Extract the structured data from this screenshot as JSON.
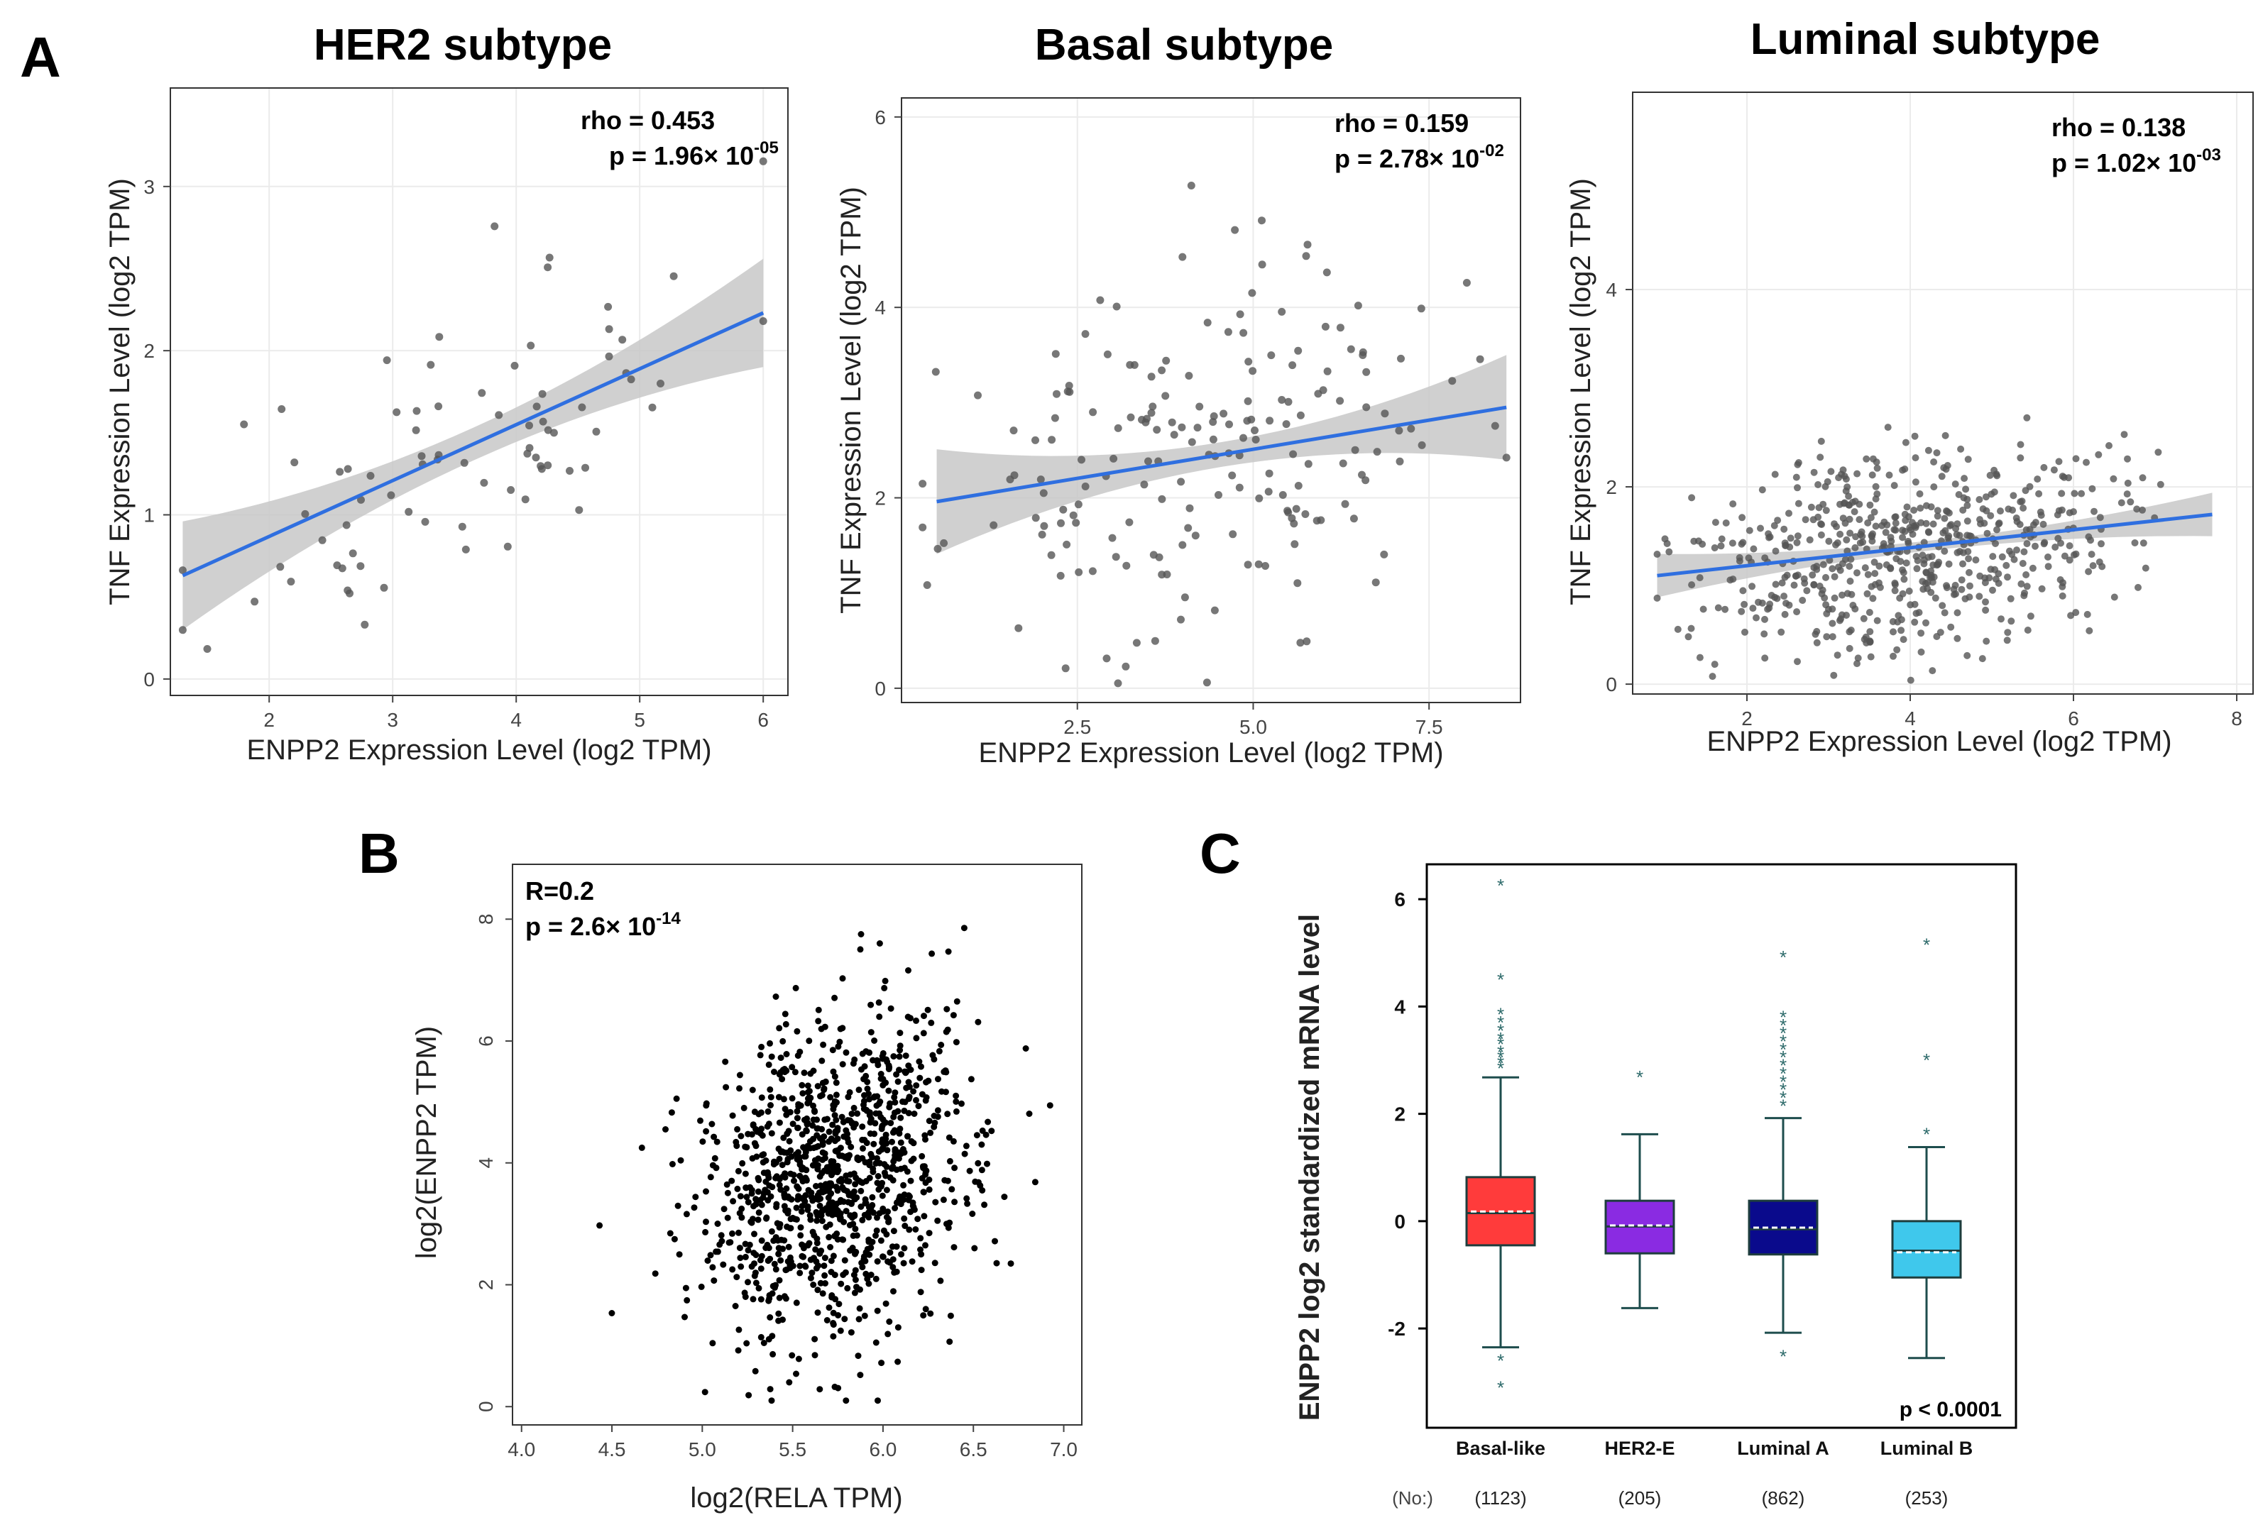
{
  "panel_labels": {
    "a": "A",
    "b": "B",
    "c": "C"
  },
  "colors": {
    "regression_line": "#2f6fe0",
    "ci_band": "#c8c8c8",
    "point_gray": "#555555",
    "point_black": "#000000",
    "box_basal": "#ff3b3b",
    "box_her2": "#8a2be2",
    "box_luma": "#0a0a8c",
    "box_lumb": "#3fc8ec",
    "outlier": "#2e6b6b"
  },
  "chart_data": [
    {
      "id": "her2",
      "type": "scatter",
      "title": "HER2 subtype",
      "xlabel": "ENPP2 Expression Level (log2 TPM)",
      "ylabel": "TNF Expression Level (log2 TPM)",
      "xlim": [
        1.2,
        6.2
      ],
      "ylim": [
        -0.1,
        3.6
      ],
      "xticks": [
        2,
        3,
        4,
        5,
        6
      ],
      "yticks": [
        0,
        1,
        2,
        3
      ],
      "grid": true,
      "stats": {
        "rho": "rho = 0.453",
        "p_prefix": "p = 1.96× 10",
        "p_exp": "-05"
      },
      "fit": {
        "x": [
          1.3,
          6.0
        ],
        "y": [
          0.63,
          2.23
        ],
        "ci_halfwidth_ends": 0.33,
        "ci_halfwidth_mid": 0.1
      },
      "n_points": 80,
      "seed": 11
    },
    {
      "id": "basal",
      "type": "scatter",
      "title": "Basal subtype",
      "xlabel": "ENPP2 Expression Level (log2 TPM)",
      "ylabel": "TNF Expression Level (log2 TPM)",
      "xlim": [
        0,
        8.8
      ],
      "ylim": [
        -0.15,
        6.2
      ],
      "xticks": [
        2.5,
        5.0,
        7.5
      ],
      "xtick_labels": [
        "2.5",
        "5.0",
        "7.5"
      ],
      "yticks": [
        0,
        2,
        4,
        6
      ],
      "grid": true,
      "stats": {
        "rho": "rho = 0.159",
        "p_prefix": "p = 2.78× 10",
        "p_exp": "-02"
      },
      "fit": {
        "x": [
          0.5,
          8.6
        ],
        "y": [
          1.96,
          2.95
        ],
        "ci_halfwidth_ends": 0.55,
        "ci_halfwidth_mid": 0.13
      },
      "n_points": 190,
      "seed": 23
    },
    {
      "id": "luminal",
      "type": "scatter",
      "title": "Luminal subtype",
      "xlabel": "ENPP2 Expression Level (log2 TPM)",
      "ylabel": "TNF Expression Level (log2 TPM)",
      "xlim": [
        0.6,
        8.2
      ],
      "ylim": [
        -0.1,
        6.0
      ],
      "xticks": [
        2,
        4,
        6,
        8
      ],
      "yticks": [
        0,
        2,
        4
      ],
      "grid": true,
      "stats": {
        "rho": "rho = 0.138",
        "p_prefix": "p = 1.02× 10",
        "p_exp": "-03"
      },
      "fit": {
        "x": [
          0.9,
          7.7
        ],
        "y": [
          1.1,
          1.72
        ],
        "ci_halfwidth_ends": 0.22,
        "ci_halfwidth_mid": 0.05
      },
      "n_points": 600,
      "seed": 37
    },
    {
      "id": "rela",
      "type": "scatter",
      "xlabel": "log2(RELA TPM)",
      "ylabel": "log2(ENPP2 TPM)",
      "xlim": [
        3.95,
        7.1
      ],
      "ylim": [
        -0.3,
        8.9
      ],
      "xticks": [
        4.0,
        4.5,
        5.0,
        5.5,
        6.0,
        6.5,
        7.0
      ],
      "xtick_labels": [
        "4.0",
        "4.5",
        "5.0",
        "5.5",
        "6.0",
        "6.5",
        "7.0"
      ],
      "yticks": [
        0,
        2,
        4,
        6,
        8
      ],
      "grid": false,
      "stats": {
        "rho": "R=0.2",
        "p_prefix": "p = 2.6× 10",
        "p_exp": "-14"
      },
      "n_points": 1100,
      "seed": 53
    },
    {
      "id": "box",
      "type": "box",
      "ylabel": "ENPP2 log2 standardized mRNA level",
      "ylim": [
        -3.85,
        6.65
      ],
      "yticks": [
        -2,
        0,
        2,
        4,
        6
      ],
      "no_label": "(No:)",
      "pvalue": "p < 0.0001",
      "groups": [
        {
          "name": "Basal-like",
          "n": "(1123)",
          "q1": -0.45,
          "median": 0.15,
          "q3": 0.82,
          "mean": 0.18,
          "whisker_low": -2.35,
          "whisker_high": 2.68,
          "outliers": [
            6.25,
            4.5,
            3.85,
            3.7,
            3.55,
            3.4,
            3.3,
            3.15,
            3.05,
            2.95,
            2.85,
            -2.6,
            -3.1
          ],
          "color": "#ff3b3b"
        },
        {
          "name": "HER2-E",
          "n": "(205)",
          "q1": -0.6,
          "median": -0.1,
          "q3": 0.38,
          "mean": -0.08,
          "whisker_low": -1.62,
          "whisker_high": 1.62,
          "outliers": [
            2.68
          ],
          "color": "#8a2be2"
        },
        {
          "name": "Luminal A",
          "n": "(862)",
          "q1": -0.62,
          "median": -0.15,
          "q3": 0.38,
          "mean": -0.12,
          "whisker_low": -2.08,
          "whisker_high": 1.92,
          "outliers": [
            4.92,
            3.8,
            3.65,
            3.5,
            3.35,
            3.2,
            3.05,
            2.9,
            2.75,
            2.6,
            2.45,
            2.3,
            2.15,
            -2.52
          ],
          "color": "#0a0a8c"
        },
        {
          "name": "Luminal B",
          "n": "(253)",
          "q1": -1.05,
          "median": -0.55,
          "q3": 0.0,
          "mean": -0.58,
          "whisker_low": -2.55,
          "whisker_high": 1.38,
          "outliers": [
            5.15,
            3.0,
            1.62
          ],
          "color": "#3fc8ec"
        }
      ]
    }
  ]
}
